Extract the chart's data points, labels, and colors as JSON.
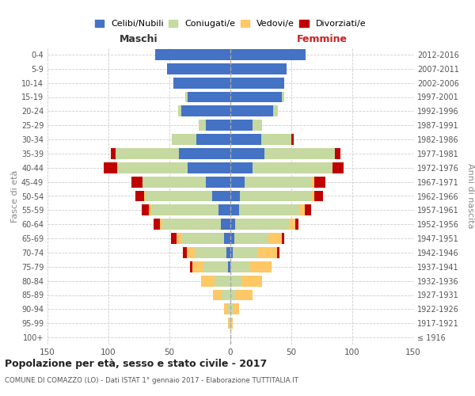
{
  "age_groups": [
    "100+",
    "95-99",
    "90-94",
    "85-89",
    "80-84",
    "75-79",
    "70-74",
    "65-69",
    "60-64",
    "55-59",
    "50-54",
    "45-49",
    "40-44",
    "35-39",
    "30-34",
    "25-29",
    "20-24",
    "15-19",
    "10-14",
    "5-9",
    "0-4"
  ],
  "birth_years": [
    "≤ 1916",
    "1917-1921",
    "1922-1926",
    "1927-1931",
    "1932-1936",
    "1937-1941",
    "1942-1946",
    "1947-1951",
    "1952-1956",
    "1957-1961",
    "1962-1966",
    "1967-1971",
    "1972-1976",
    "1977-1981",
    "1982-1986",
    "1987-1991",
    "1992-1996",
    "1997-2001",
    "2002-2006",
    "2007-2011",
    "2012-2016"
  ],
  "maschi_celibi": [
    0,
    0,
    0,
    0,
    0,
    2,
    3,
    5,
    8,
    10,
    15,
    20,
    35,
    42,
    28,
    20,
    40,
    35,
    47,
    52,
    62
  ],
  "maschi_coniugati": [
    0,
    1,
    2,
    7,
    13,
    20,
    26,
    35,
    48,
    55,
    55,
    52,
    58,
    52,
    20,
    6,
    3,
    2,
    0,
    0,
    0
  ],
  "maschi_vedovi": [
    0,
    1,
    3,
    7,
    11,
    9,
    7,
    4,
    2,
    2,
    1,
    0,
    0,
    0,
    0,
    0,
    0,
    0,
    0,
    0,
    0
  ],
  "maschi_divorziati": [
    0,
    0,
    0,
    0,
    0,
    2,
    3,
    5,
    5,
    6,
    7,
    9,
    11,
    4,
    0,
    0,
    0,
    0,
    0,
    0,
    0
  ],
  "femmine_nubili": [
    0,
    0,
    0,
    0,
    0,
    0,
    2,
    3,
    4,
    7,
    8,
    12,
    18,
    28,
    25,
    18,
    35,
    42,
    44,
    46,
    62
  ],
  "femmine_coniugate": [
    0,
    0,
    2,
    4,
    9,
    16,
    20,
    28,
    44,
    50,
    58,
    55,
    66,
    58,
    25,
    8,
    4,
    2,
    0,
    0,
    0
  ],
  "femmine_vedove": [
    0,
    2,
    5,
    14,
    17,
    18,
    16,
    11,
    5,
    4,
    3,
    2,
    0,
    0,
    0,
    0,
    0,
    0,
    0,
    0,
    0
  ],
  "femmine_divorziate": [
    0,
    0,
    0,
    0,
    0,
    0,
    2,
    2,
    3,
    5,
    7,
    9,
    9,
    4,
    2,
    0,
    0,
    0,
    0,
    0,
    0
  ],
  "colors": {
    "celibi_nubili": "#4472c4",
    "coniugati": "#c5d9a0",
    "vedovi": "#ffc866",
    "divorziati": "#c00000"
  },
  "title": "Popolazione per età, sesso e stato civile - 2017",
  "subtitle": "COMUNE DI COMAZZO (LO) - Dati ISTAT 1° gennaio 2017 - Elaborazione TUTTITALIA.IT",
  "label_maschi": "Maschi",
  "label_femmine": "Femmine",
  "ylabel_left": "Fasce di età",
  "ylabel_right": "Anni di nascita",
  "xlim": 150,
  "legend_labels": [
    "Celibi/Nubili",
    "Coniugati/e",
    "Vedovi/e",
    "Divorziati/e"
  ]
}
